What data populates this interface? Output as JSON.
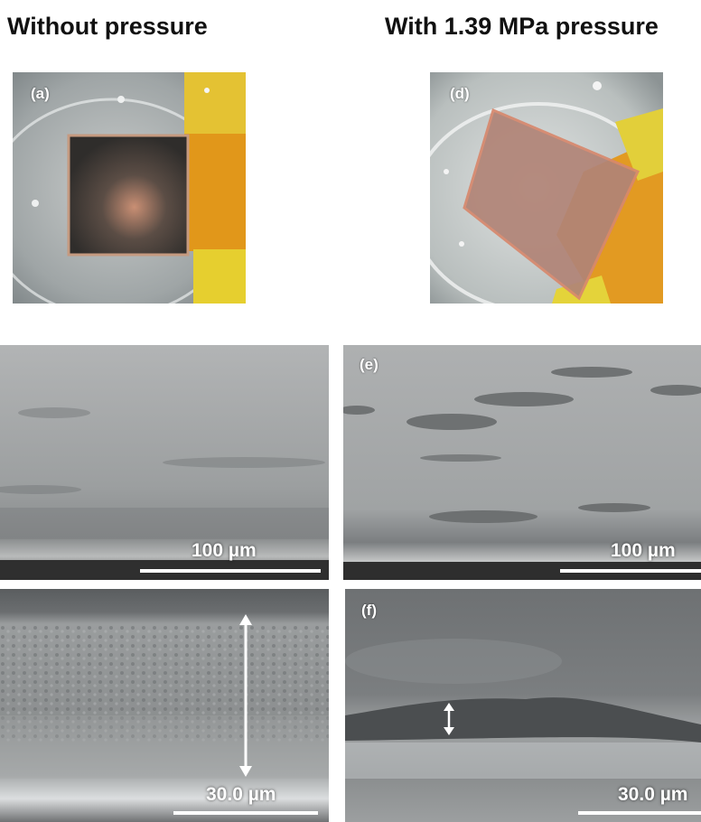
{
  "headings": {
    "left": "Without pressure",
    "right": "With 1.39 MPa pressure"
  },
  "panels": {
    "a": {
      "label": "(a)",
      "description_icon": "photo-film-on-electrode-dark"
    },
    "d": {
      "label": "(d)",
      "description_icon": "photo-film-on-electrode-copper"
    },
    "e": {
      "label": "(e)"
    },
    "f": {
      "label": "(f)"
    }
  },
  "scale_bars": {
    "b": "100 µm",
    "e": "100 µm",
    "c": "30.0 µm",
    "f": "30.0 µm"
  },
  "colors": {
    "tape": "#e3a21a",
    "sem_gray": "#9a9a9a",
    "scale_text": "#ffffff"
  }
}
